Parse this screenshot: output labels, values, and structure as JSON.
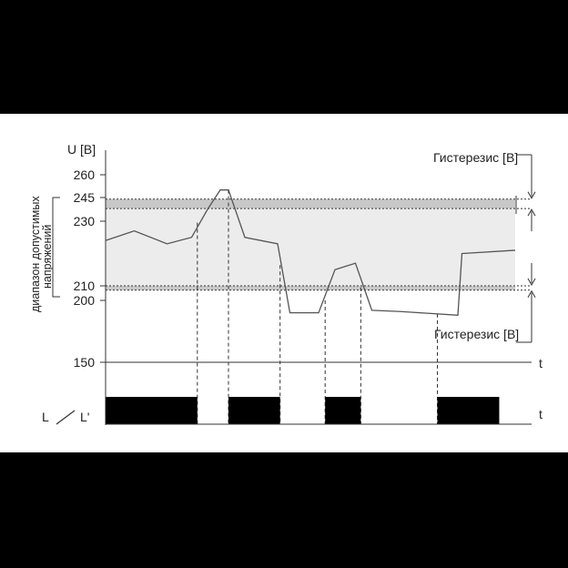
{
  "chart_data": {
    "type": "line",
    "ylabel": "U [В]",
    "xlabel": "t",
    "yticks": [
      260,
      245,
      230,
      210,
      200,
      150
    ],
    "range_label": [
      "диапазон допустимых",
      "напряжений"
    ],
    "hysteresis_label": "Гистерезис [В]",
    "bands": [
      {
        "name": "upper_hysteresis",
        "from": 238,
        "to": 244
      },
      {
        "name": "allowed",
        "from": 210,
        "to": 238
      },
      {
        "name": "lower_hysteresis",
        "from": 207,
        "to": 210
      }
    ],
    "series": [
      {
        "x": [
          0,
          7,
          15,
          21,
          25,
          28,
          30,
          34,
          42,
          45,
          52,
          56,
          61,
          65,
          72,
          86,
          87,
          100
        ],
        "y": [
          224,
          227,
          223,
          225,
          238,
          250,
          250,
          225,
          223,
          190,
          190,
          215,
          217,
          192,
          191,
          188,
          220,
          221
        ]
      }
    ],
    "relay": {
      "label": "L ╱ L'",
      "x_label": "t",
      "on_intervals": [
        [
          0,
          22.4
        ],
        [
          30,
          42.6
        ],
        [
          53.6,
          62.3
        ],
        [
          81,
          96.1
        ]
      ]
    }
  }
}
